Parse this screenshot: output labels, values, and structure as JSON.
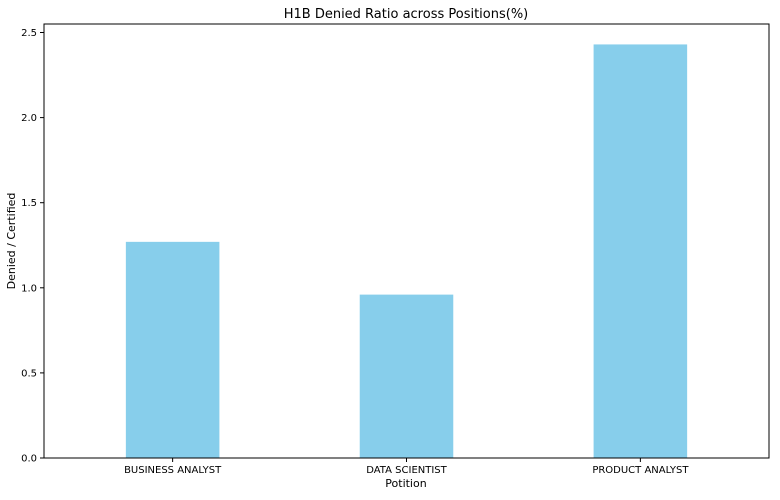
{
  "chart_data": {
    "type": "bar",
    "title": "H1B Denied Ratio across Positions(%)",
    "xlabel": "Potition",
    "ylabel": "Denied / Certified",
    "categories": [
      "BUSINESS ANALYST",
      "DATA SCIENTIST",
      "PRODUCT ANALYST"
    ],
    "values": [
      1.27,
      0.96,
      2.43
    ],
    "ylim": [
      0,
      2.55
    ],
    "yticks": [
      0.0,
      0.5,
      1.0,
      1.5,
      2.0,
      2.5
    ],
    "ytick_labels": [
      "0.0",
      "0.5",
      "1.0",
      "1.5",
      "2.0",
      "2.5"
    ],
    "grid": false,
    "legend": "none",
    "bar_color": "#87ceeb"
  }
}
